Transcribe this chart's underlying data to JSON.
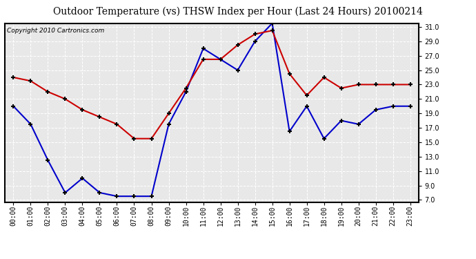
{
  "title": "Outdoor Temperature (vs) THSW Index per Hour (Last 24 Hours) 20100214",
  "copyright_text": "Copyright 2010 Cartronics.com",
  "hours": [
    "00:00",
    "01:00",
    "02:00",
    "03:00",
    "04:00",
    "05:00",
    "06:00",
    "07:00",
    "08:00",
    "09:00",
    "10:00",
    "11:00",
    "12:00",
    "13:00",
    "14:00",
    "15:00",
    "16:00",
    "17:00",
    "18:00",
    "19:00",
    "20:00",
    "21:00",
    "22:00",
    "23:00"
  ],
  "temp_red": [
    24.0,
    23.5,
    22.0,
    21.0,
    19.5,
    18.5,
    17.5,
    15.5,
    15.5,
    19.0,
    22.5,
    26.5,
    26.5,
    28.5,
    30.0,
    30.5,
    24.5,
    21.5,
    24.0,
    22.5,
    23.0,
    23.0,
    23.0,
    23.0
  ],
  "thsw_blue": [
    20.0,
    17.5,
    12.5,
    8.0,
    10.0,
    8.0,
    7.5,
    7.5,
    7.5,
    17.5,
    22.0,
    28.0,
    26.5,
    25.0,
    29.0,
    31.5,
    16.5,
    20.0,
    15.5,
    18.0,
    17.5,
    19.5,
    20.0,
    20.0
  ],
  "ylim_min": 7.0,
  "ylim_max": 31.0,
  "yticks": [
    7.0,
    9.0,
    11.0,
    13.0,
    15.0,
    17.0,
    19.0,
    21.0,
    23.0,
    25.0,
    27.0,
    29.0,
    31.0
  ],
  "red_color": "#cc0000",
  "blue_color": "#0000cc",
  "bg_color": "#ffffff",
  "plot_bg_color": "#e8e8e8",
  "grid_color": "#ffffff",
  "border_color": "#000000",
  "title_fontsize": 10,
  "copyright_fontsize": 6.5,
  "tick_fontsize": 7
}
